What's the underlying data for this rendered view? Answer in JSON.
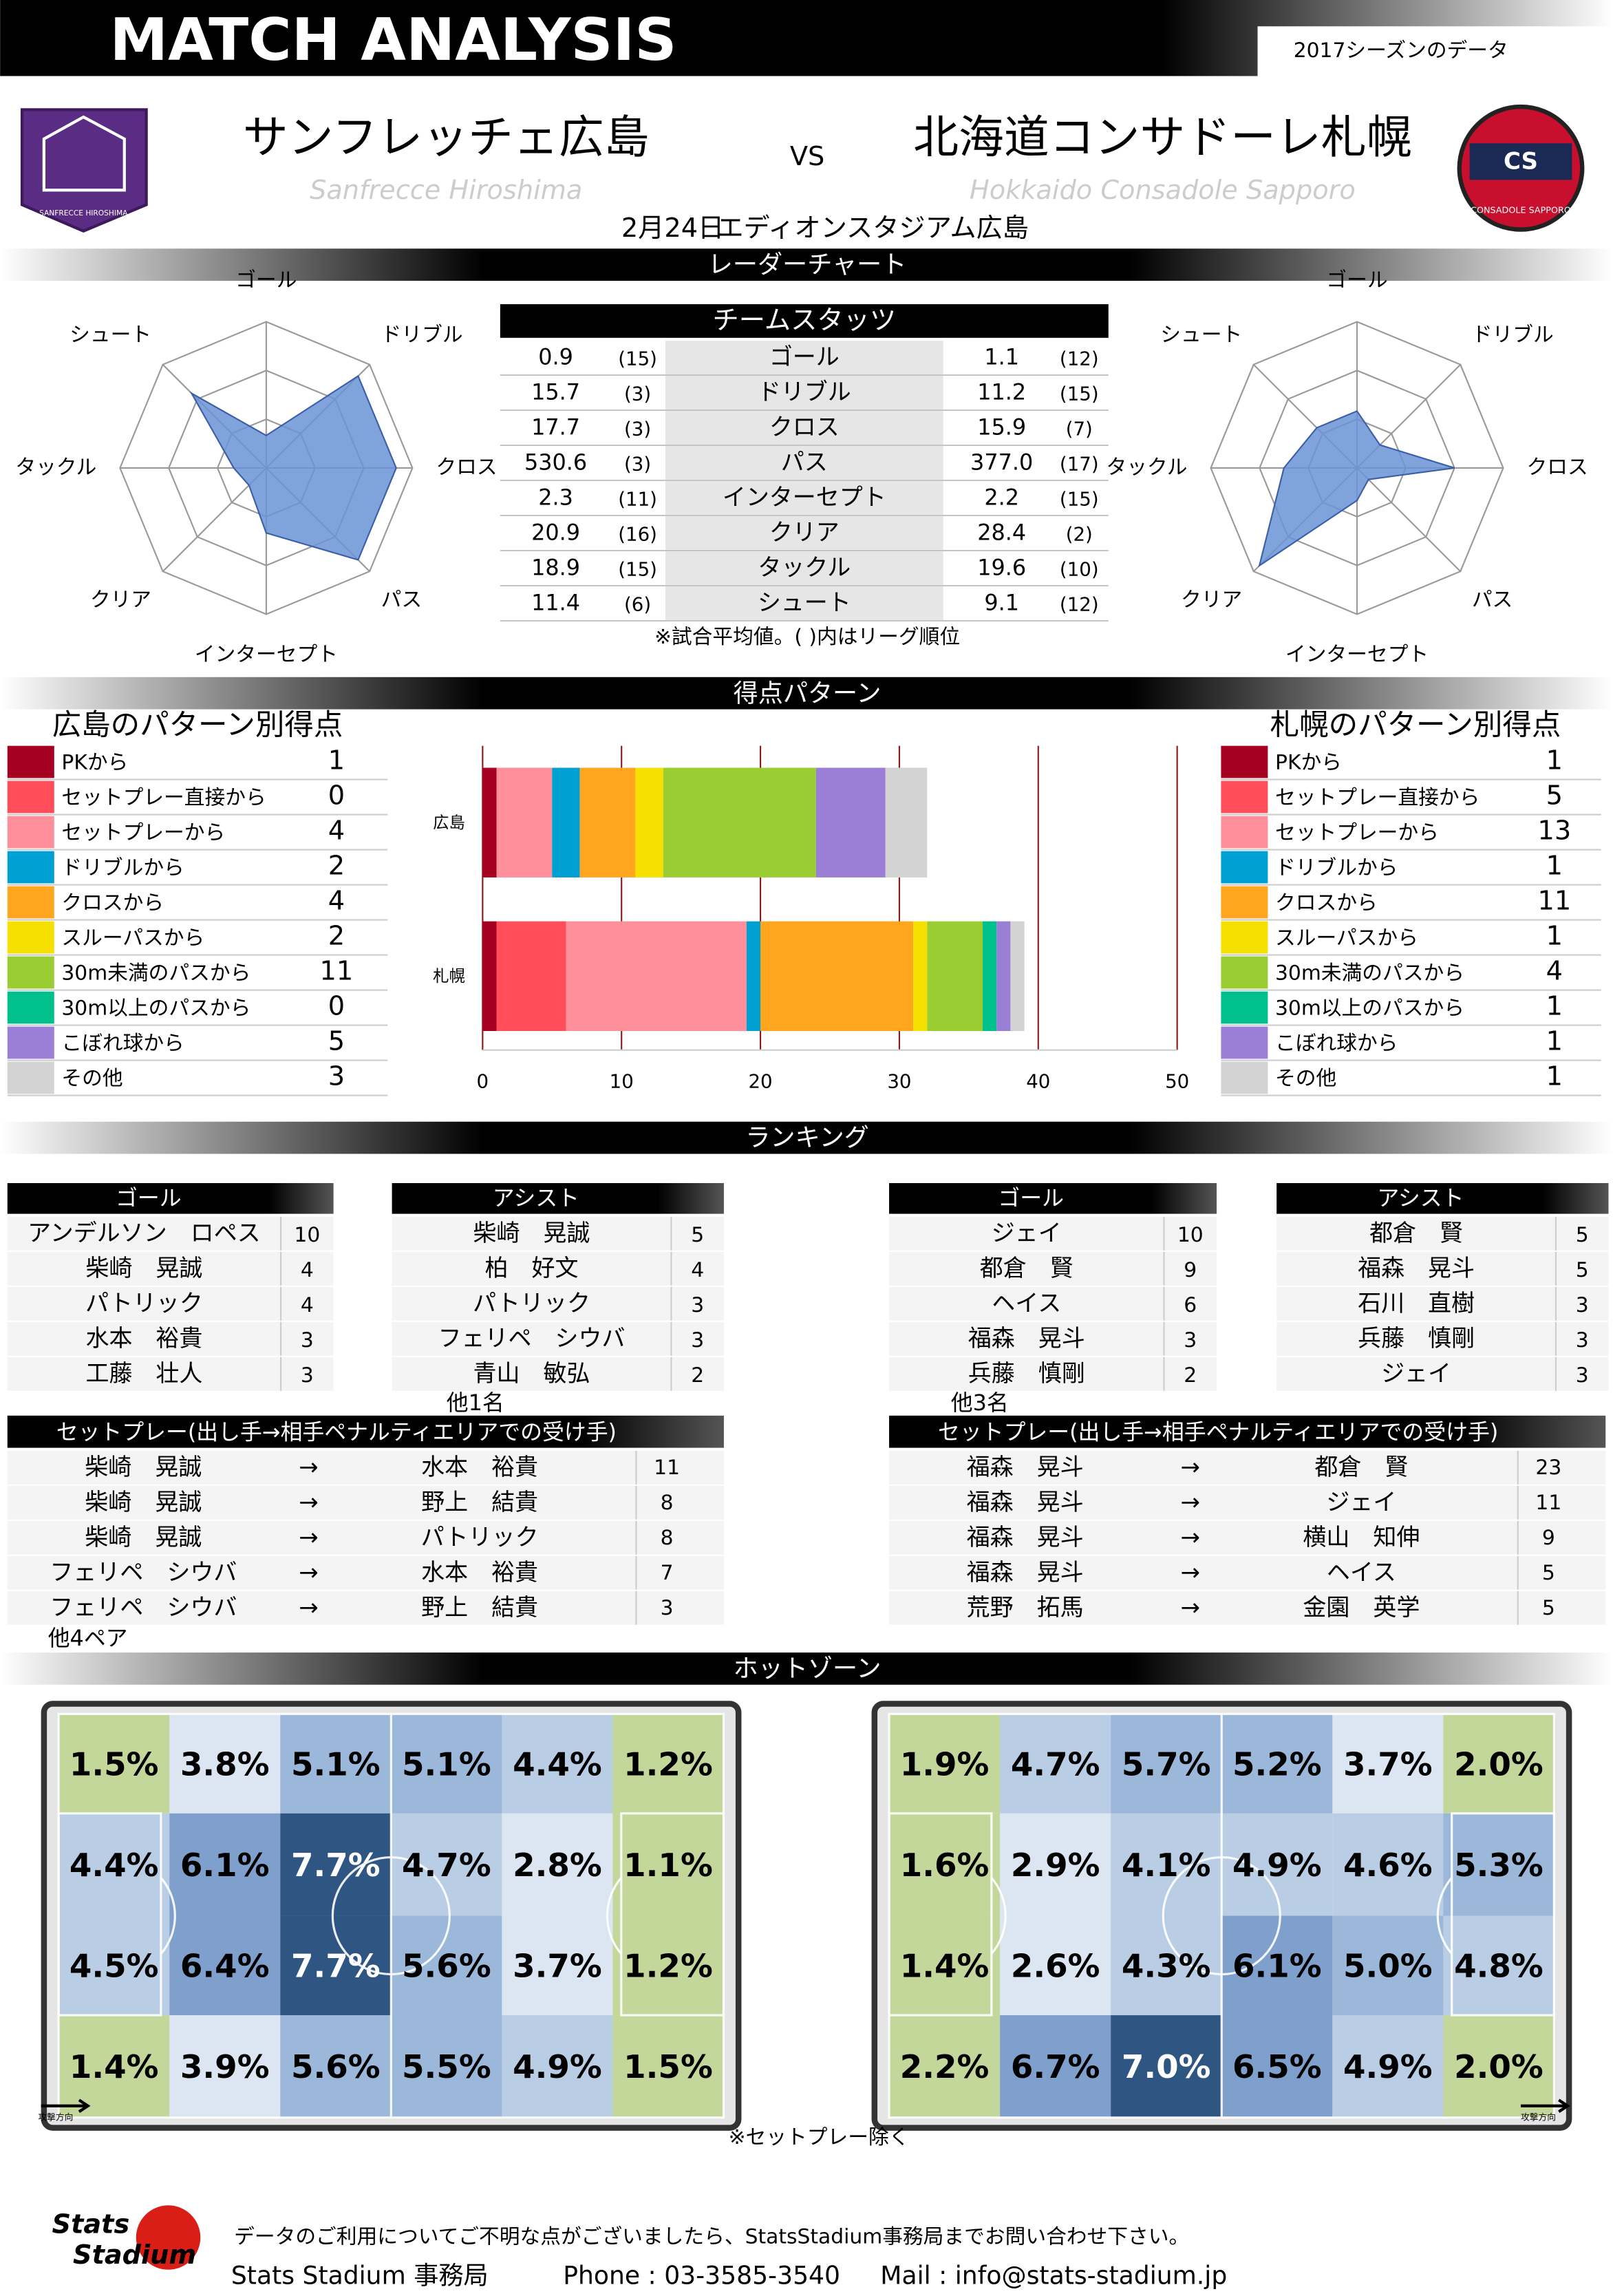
{
  "header": {
    "title": "MATCH ANALYSIS",
    "season": "2017シーズンのデータ"
  },
  "match": {
    "home": {
      "name": "サンフレッチェ広島",
      "name_en": "Sanfrecce Hiroshima",
      "logo_text": "SANFRECCE HIROSHIMA"
    },
    "away": {
      "name": "北海道コンサドーレ札幌",
      "name_en": "Hokkaido Consadole Sapporo",
      "logo_text": "CONSADOLE SAPPORO",
      "logo_mark": "CS"
    },
    "vs": "VS",
    "date": "2月24日",
    "venue": "エディオンスタジアム広島"
  },
  "sections": [
    "レーダーチャート",
    "得点パターン",
    "ランキング",
    "ホットゾーン"
  ],
  "team_stats": {
    "title": "チームスタッツ",
    "note": "※試合平均値。( )内はリーグ順位",
    "rows": [
      {
        "label": "ゴール",
        "home": "0.9",
        "home_rank": {
          "value": 15,
          "label": "(15)"
        },
        "away": "1.1",
        "away_rank": {
          "value": 12,
          "label": "(12)"
        }
      },
      {
        "label": "ドリブル",
        "home": "15.7",
        "home_rank": {
          "value": 3,
          "label": "(3)"
        },
        "away": "11.2",
        "away_rank": {
          "value": 15,
          "label": "(15)"
        }
      },
      {
        "label": "クロス",
        "home": "17.7",
        "home_rank": {
          "value": 3,
          "label": "(3)"
        },
        "away": "15.9",
        "away_rank": {
          "value": 7,
          "label": "(7)"
        }
      },
      {
        "label": "パス",
        "home": "530.6",
        "home_rank": {
          "value": 3,
          "label": "(3)"
        },
        "away": "377.0",
        "away_rank": {
          "value": 17,
          "label": "(17)"
        }
      },
      {
        "label": "インターセプト",
        "home": "2.3",
        "home_rank": {
          "value": 11,
          "label": "(11)"
        },
        "away": "2.2",
        "away_rank": {
          "value": 15,
          "label": "(15)"
        }
      },
      {
        "label": "クリア",
        "home": "20.9",
        "home_rank": {
          "value": 16,
          "label": "(16)"
        },
        "away": "28.4",
        "away_rank": {
          "value": 2,
          "label": "(2)"
        }
      },
      {
        "label": "タックル",
        "home": "18.9",
        "home_rank": {
          "value": 15,
          "label": "(15)"
        },
        "away": "19.6",
        "away_rank": {
          "value": 10,
          "label": "(10)"
        }
      },
      {
        "label": "シュート",
        "home": "11.4",
        "home_rank": {
          "value": 6,
          "label": "(6)"
        },
        "away": "9.1",
        "away_rank": {
          "value": 12,
          "label": "(12)"
        }
      }
    ]
  },
  "scoring": {
    "home_title": "広島のパターン別得点",
    "away_title": "札幌のパターン別得点"
  },
  "chart_data": {
    "type": "bar",
    "orientation": "horizontal",
    "stacked": true,
    "categories": [
      "広島",
      "札幌"
    ],
    "series": [
      {
        "name": "PKから",
        "color": "#a50021",
        "values": [
          1,
          1
        ]
      },
      {
        "name": "セットプレー直接から",
        "color": "#ff4d5a",
        "values": [
          0,
          5
        ]
      },
      {
        "name": "セットプレーから",
        "color": "#ff8f9a",
        "values": [
          4,
          13
        ]
      },
      {
        "name": "ドリブルから",
        "color": "#00a0d2",
        "values": [
          2,
          1
        ]
      },
      {
        "name": "クロスから",
        "color": "#ffa51e",
        "values": [
          4,
          11
        ]
      },
      {
        "name": "スルーパスから",
        "color": "#f5e000",
        "values": [
          2,
          1
        ]
      },
      {
        "name": "30m未満のパスから",
        "color": "#9acd32",
        "values": [
          11,
          4
        ]
      },
      {
        "name": "30m以上のパスから",
        "color": "#00c08b",
        "values": [
          0,
          1
        ]
      },
      {
        "name": "こぼれ球から",
        "color": "#9b7fd6",
        "values": [
          5,
          1
        ]
      },
      {
        "name": "その他",
        "color": "#d3d3d3",
        "values": [
          3,
          1
        ]
      }
    ],
    "xlim": [
      0,
      50
    ],
    "xticks": [
      0,
      10,
      20,
      30,
      40,
      50
    ],
    "grid": true
  },
  "rankings": {
    "home_goal": {
      "header": "ゴール",
      "rows": [
        [
          "アンデルソン　ロペス",
          10
        ],
        [
          "柴崎　晃誠",
          4
        ],
        [
          "パトリック",
          4
        ],
        [
          "水本　裕貴",
          3
        ],
        [
          "工藤　壮人",
          3
        ]
      ]
    },
    "home_assist": {
      "header": "アシスト",
      "rows": [
        [
          "柴崎　晃誠",
          5
        ],
        [
          "柏　好文",
          4
        ],
        [
          "パトリック",
          3
        ],
        [
          "フェリペ　シウバ",
          3
        ],
        [
          "青山　敏弘",
          2
        ]
      ],
      "note": "他1名"
    },
    "away_goal": {
      "header": "ゴール",
      "rows": [
        [
          "ジェイ",
          10
        ],
        [
          "都倉　賢",
          9
        ],
        [
          "ヘイス",
          6
        ],
        [
          "福森　晃斗",
          3
        ],
        [
          "兵藤　慎剛",
          2
        ]
      ],
      "note": "他3名"
    },
    "away_assist": {
      "header": "アシスト",
      "rows": [
        [
          "都倉　賢",
          5
        ],
        [
          "福森　晃斗",
          5
        ],
        [
          "石川　直樹",
          3
        ],
        [
          "兵藤　慎剛",
          3
        ],
        [
          "ジェイ",
          3
        ]
      ]
    }
  },
  "setplays": {
    "home": {
      "header": "セットプレー(出し手→相手ペナルティエリアでの受け手)",
      "rows": [
        [
          "柴崎　晃誠",
          "→",
          "水本　裕貴",
          11
        ],
        [
          "柴崎　晃誠",
          "→",
          "野上　結貴",
          8
        ],
        [
          "柴崎　晃誠",
          "→",
          "パトリック",
          8
        ],
        [
          "フェリペ　シウバ",
          "→",
          "水本　裕貴",
          7
        ],
        [
          "フェリペ　シウバ",
          "→",
          "野上　結貴",
          3
        ]
      ],
      "note": "他4ペア"
    },
    "away": {
      "header": "セットプレー(出し手→相手ペナルティエリアでの受け手)",
      "rows": [
        [
          "福森　晃斗",
          "→",
          "都倉　賢",
          23
        ],
        [
          "福森　晃斗",
          "→",
          "ジェイ",
          11
        ],
        [
          "福森　晃斗",
          "→",
          "横山　知伸",
          9
        ],
        [
          "福森　晃斗",
          "→",
          "ヘイス",
          5
        ],
        [
          "荒野　拓馬",
          "→",
          "金園　英学",
          5
        ]
      ]
    }
  },
  "hotzone": {
    "home": {
      "values": [
        [
          1.5,
          3.8,
          5.1,
          5.1,
          4.4,
          1.2
        ],
        [
          4.4,
          6.1,
          7.7,
          4.7,
          2.8,
          1.1
        ],
        [
          4.5,
          6.4,
          7.7,
          5.6,
          3.7,
          1.2
        ],
        [
          1.4,
          3.9,
          5.6,
          5.5,
          4.9,
          1.5
        ]
      ],
      "value_labels": [
        [
          "1.5%",
          "3.8%",
          "5.1%",
          "5.1%",
          "4.4%",
          "1.2%"
        ],
        [
          "4.4%",
          "6.1%",
          "7.7%",
          "4.7%",
          "2.8%",
          "1.1%"
        ],
        [
          "4.5%",
          "6.4%",
          "7.7%",
          "5.6%",
          "3.7%",
          "1.2%"
        ],
        [
          "1.4%",
          "3.9%",
          "5.6%",
          "5.5%",
          "4.9%",
          "1.5%"
        ]
      ]
    },
    "away": {
      "values": [
        [
          1.9,
          4.7,
          5.7,
          5.2,
          3.7,
          2.0
        ],
        [
          1.6,
          2.9,
          4.1,
          4.9,
          4.6,
          5.3
        ],
        [
          1.4,
          2.6,
          4.3,
          6.1,
          5.0,
          4.8
        ],
        [
          2.2,
          6.7,
          7.0,
          6.5,
          4.9,
          2.0
        ]
      ],
      "value_labels": [
        [
          "1.9%",
          "4.7%",
          "5.7%",
          "5.2%",
          "3.7%",
          "2.0%"
        ],
        [
          "1.6%",
          "2.9%",
          "4.1%",
          "4.9%",
          "4.6%",
          "5.3%"
        ],
        [
          "1.4%",
          "2.6%",
          "4.3%",
          "6.1%",
          "5.0%",
          "4.8%"
        ],
        [
          "2.2%",
          "6.7%",
          "7.0%",
          "6.5%",
          "4.9%",
          "2.0%"
        ]
      ]
    },
    "direction_label": "攻撃方向",
    "note": "※セットプレー除く"
  },
  "footer": {
    "logo": [
      "Stats",
      "Stadium"
    ],
    "contact": "データのご利用についてご不明な点がございましたら、StatsStadium事務局までお問い合わせ下さい。",
    "office": "Stats Stadium 事務局",
    "phone": "Phone : 03-3585-3540",
    "mail": "Mail : info@stats-stadium.jp"
  }
}
